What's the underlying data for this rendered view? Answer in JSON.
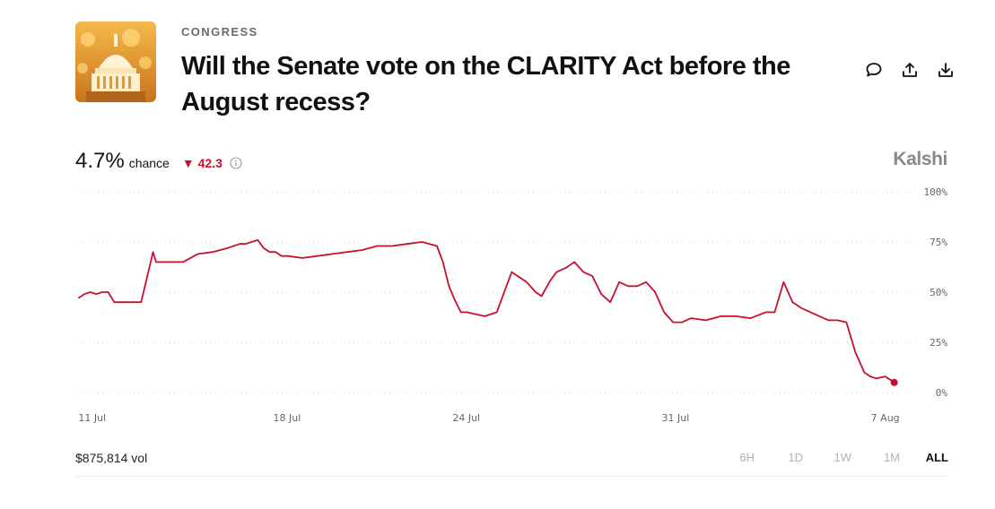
{
  "market": {
    "category": "CONGRESS",
    "title": "Will the Senate vote on the CLARITY Act before the August recess?",
    "thumbnail_icon": "capitol-dome-icon"
  },
  "actions": [
    {
      "name": "comment-icon"
    },
    {
      "name": "share-icon"
    },
    {
      "name": "download-icon"
    }
  ],
  "stats": {
    "chance_value": "4.7%",
    "chance_label": "chance",
    "delta": "▼ 42.3",
    "info_icon": "info-icon"
  },
  "brand": "Kalshi",
  "footer": {
    "volume": "$875,814 vol",
    "ranges": [
      "6H",
      "1D",
      "1W",
      "1M",
      "ALL"
    ],
    "active_range": "ALL"
  },
  "colors": {
    "line": "#c8102e",
    "grid": "#d6d6d6",
    "axis_text": "#666666"
  },
  "chart_data": {
    "type": "line",
    "x_tick_labels": [
      "11 Jul",
      "18 Jul",
      "24 Jul",
      "31 Jul",
      "7 Aug"
    ],
    "x_tick_days": [
      0,
      7,
      13,
      20,
      27
    ],
    "y_tick_labels": [
      "100%",
      "75%",
      "50%",
      "25%",
      "0%"
    ],
    "y_tick_values": [
      100,
      75,
      50,
      25,
      0
    ],
    "ylim": [
      0,
      100
    ],
    "xlim_days": [
      -0.1,
      27.4
    ],
    "grid": "horizontal dotted",
    "series": [
      {
        "x_days": [
          0.0,
          0.2,
          0.4,
          0.6,
          0.8,
          1.0,
          1.2,
          1.4,
          1.6,
          2.1,
          2.5,
          2.6,
          2.8,
          3.0,
          3.5,
          4.0,
          4.5,
          5.0,
          5.4,
          5.6,
          5.8,
          6.0,
          6.2,
          6.4,
          6.6,
          6.8,
          7.0,
          7.5,
          8.0,
          8.5,
          9.0,
          9.5,
          10.0,
          10.5,
          11.0,
          11.5,
          12.0,
          12.2,
          12.4,
          12.6,
          12.8,
          13.0,
          13.3,
          13.6,
          14.0,
          14.5,
          15.0,
          15.3,
          15.5,
          15.8,
          16.0,
          16.3,
          16.6,
          16.9,
          17.2,
          17.5,
          17.8,
          18.1,
          18.4,
          18.7,
          19.0,
          19.3,
          19.6,
          19.9,
          20.2,
          20.5,
          21.0,
          21.5,
          22.0,
          22.5,
          23.0,
          23.3,
          23.6,
          23.9,
          24.2,
          24.5,
          24.8,
          25.1,
          25.4,
          25.7,
          26.0,
          26.3,
          26.5,
          26.7,
          27.0,
          27.3
        ],
        "y": [
          47,
          49,
          50,
          49,
          50,
          50,
          45,
          45,
          45,
          45,
          70,
          65,
          65,
          65,
          65,
          69,
          70,
          72,
          74,
          74,
          75,
          76,
          72,
          70,
          70,
          68,
          68,
          67,
          68,
          69,
          70,
          71,
          73,
          73,
          74,
          75,
          73,
          65,
          53,
          46,
          40,
          40,
          39,
          38,
          40,
          60,
          55,
          50,
          48,
          56,
          60,
          62,
          65,
          60,
          58,
          49,
          45,
          55,
          53,
          53,
          55,
          50,
          40,
          35,
          35,
          37,
          36,
          38,
          38,
          37,
          40,
          40,
          55,
          45,
          42,
          40,
          38,
          36,
          36,
          35,
          20,
          10,
          8,
          7,
          8,
          5
        ]
      }
    ],
    "last_value": 4.7
  }
}
